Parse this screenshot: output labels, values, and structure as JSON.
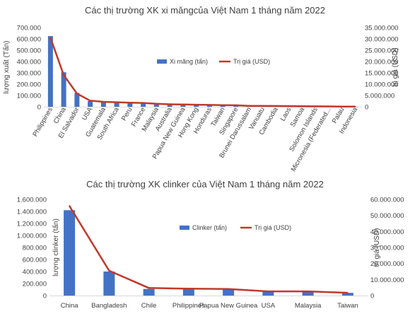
{
  "chart_data": [
    {
      "type": "bar",
      "title": "Các thị trường XK xi măngcủa Việt Nam 1 tháng năm 2022",
      "ylabel": "lượng xuất (Tấn)",
      "y2label": "trị giá (USD)",
      "ylim": [
        0,
        700000
      ],
      "y2lim": [
        0,
        35000000
      ],
      "yticks": [
        "0",
        "100.000",
        "200.000",
        "300.000",
        "400.000",
        "500.000",
        "600.000",
        "700.000"
      ],
      "y2ticks": [
        "0",
        "5.000.000",
        "10.000.000",
        "15.000.000",
        "20.000.000",
        "25.000.000",
        "30.000.000",
        "35.000.000"
      ],
      "grid": false,
      "legend_position": "center-right",
      "categories": [
        "Philippines",
        "China",
        "El Salvador",
        "USA",
        "Guatemala",
        "South Africa",
        "Peru",
        "France",
        "Malaysia",
        "Australia",
        "Papua New Guinea",
        "Hong Kong",
        "Honduras",
        "Taiwan",
        "Singapore",
        "Brunei Darussalam",
        "Vanuatu",
        "Cambodia",
        "Laos",
        "Samoa",
        "Solomon Islands",
        "Micronesia (Federated...",
        "Palau",
        "Indonesia"
      ],
      "series": [
        {
          "name": "Xi măng (tấn)",
          "type": "bar",
          "axis": "left",
          "color": "#4472c4",
          "values": [
            625000,
            305000,
            122000,
            50000,
            42000,
            38000,
            33000,
            30000,
            22000,
            19000,
            17000,
            15000,
            13000,
            12000,
            11000,
            6000,
            5000,
            4500,
            4000,
            3500,
            3000,
            2000,
            1000,
            500
          ]
        },
        {
          "name": "Trị giá (USD)",
          "type": "line",
          "axis": "right",
          "color": "#c0392b",
          "values": [
            30500000,
            14000000,
            5800000,
            2700000,
            2200000,
            2000000,
            1800000,
            1700000,
            1300000,
            1100000,
            1000000,
            900000,
            800000,
            700000,
            650000,
            400000,
            400000,
            350000,
            300000,
            250000,
            200000,
            150000,
            100000,
            100000
          ]
        }
      ]
    },
    {
      "type": "bar",
      "title": "Các thị trường XK clinker của Việt Nam 1 tháng năm 2022",
      "ylabel": "lượng clinker (tấn)",
      "y2label": "trị giá (USD)",
      "ylim": [
        0,
        1600000
      ],
      "y2lim": [
        0,
        60000000
      ],
      "yticks": [
        "0",
        "200.000",
        "400.000",
        "600.000",
        "800.000",
        "1.000.000",
        "1.200.000",
        "1.400.000",
        "1.600.000"
      ],
      "y2ticks": [
        "0",
        "10.000.000",
        "20.000.000",
        "30.000.000",
        "40.000.000",
        "50.000.000",
        "60.000.000"
      ],
      "grid": false,
      "legend_position": "center-right",
      "categories": [
        "China",
        "Bangladesh",
        "Chile",
        "Philippines",
        "Papua New Guinea",
        "USA",
        "Malaysia",
        "Taiwan"
      ],
      "series": [
        {
          "name": "Clinker (tấn)",
          "type": "bar",
          "axis": "left",
          "color": "#4472c4",
          "values": [
            1420000,
            400000,
            110000,
            110000,
            105000,
            60000,
            65000,
            45000
          ]
        },
        {
          "name": "Trị giá (USD)",
          "type": "line",
          "axis": "right",
          "color": "#c0392b",
          "values": [
            56000000,
            15500000,
            4700000,
            4300000,
            4100000,
            2600000,
            2600000,
            1700000
          ]
        }
      ]
    }
  ]
}
